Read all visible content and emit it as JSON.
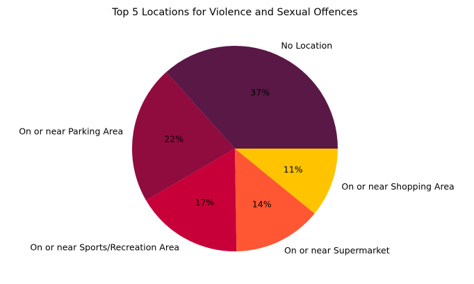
{
  "chart_data": {
    "type": "pie",
    "title": "Top 5 Locations for Violence and Sexual Offences",
    "categories": [
      "No Location",
      "On or near Parking Area",
      "On or near Sports/Recreation Area",
      "On or near Supermarket",
      "On or near Shopping Area"
    ],
    "values": [
      37,
      22,
      17,
      14,
      11
    ],
    "value_labels": [
      "37%",
      "22%",
      "17%",
      "14%",
      "11%"
    ],
    "colors": [
      "#5a1846",
      "#900c3f",
      "#c70039",
      "#ff5733",
      "#ffc300"
    ],
    "start_angle_deg": 0,
    "direction": "counterclockwise",
    "legend": "none"
  }
}
